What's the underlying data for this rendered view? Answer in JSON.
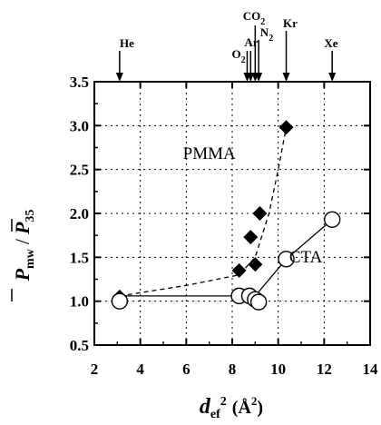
{
  "chart_data": {
    "type": "scatter",
    "title": "",
    "xlabel": {
      "main": "d",
      "sub": "ef",
      "sup": "2",
      "unit": "(Å",
      "unit_sup": "2",
      "unit_close": ")"
    },
    "ylabel": {
      "num": "P",
      "num_sub": "mw",
      "slash": "/",
      "den": "P",
      "den_sub": "35"
    },
    "xlim": [
      2,
      14
    ],
    "ylim": [
      0.5,
      3.5
    ],
    "xticks": [
      "2",
      "4",
      "6",
      "8",
      "10",
      "12",
      "14"
    ],
    "yticks": [
      "0.5",
      "1.0",
      "1.5",
      "2.0",
      "2.5",
      "3.0",
      "3.5"
    ],
    "grid": true,
    "gas_markers": [
      {
        "name": "He",
        "x": 3.1
      },
      {
        "name": "O2",
        "x": 8.65
      },
      {
        "name": "Ar",
        "x": 8.8
      },
      {
        "name": "CO2",
        "x": 9.0
      },
      {
        "name": "N2",
        "x": 9.15
      },
      {
        "name": "Kr",
        "x": 10.35
      },
      {
        "name": "Xe",
        "x": 12.35
      }
    ],
    "gas_labels": {
      "he": {
        "t": "He"
      },
      "o2": {
        "t": "O",
        "s": "2"
      },
      "ar": {
        "t": "Ar"
      },
      "co2": {
        "t": "CO",
        "s": "2"
      },
      "n2": {
        "t": "N",
        "s": "2"
      },
      "kr": {
        "t": "Kr"
      },
      "xe": {
        "t": "Xe"
      }
    },
    "series": [
      {
        "name": "PMMA",
        "marker": "filled-diamond",
        "line": "dashed",
        "points": [
          [
            3.1,
            1.05
          ],
          [
            8.3,
            1.35
          ],
          [
            8.8,
            1.73
          ],
          [
            9.0,
            1.42
          ],
          [
            9.2,
            2.0
          ],
          [
            10.35,
            2.98
          ]
        ],
        "curve": [
          [
            3.1,
            1.06
          ],
          [
            6.0,
            1.18
          ],
          [
            8.3,
            1.3
          ],
          [
            9.0,
            1.5
          ],
          [
            9.6,
            2.0
          ],
          [
            10.0,
            2.5
          ],
          [
            10.35,
            2.98
          ]
        ]
      },
      {
        "name": "CTA",
        "marker": "open-circle",
        "line": "solid",
        "points": [
          [
            3.1,
            1.0
          ],
          [
            8.3,
            1.06
          ],
          [
            8.75,
            1.06
          ],
          [
            9.0,
            1.02
          ],
          [
            9.15,
            0.99
          ],
          [
            10.35,
            1.48
          ],
          [
            12.35,
            1.93
          ]
        ],
        "curve": [
          [
            3.1,
            1.06
          ],
          [
            8.3,
            1.06
          ],
          [
            9.0,
            1.06
          ],
          [
            10.35,
            1.48
          ],
          [
            12.35,
            1.93
          ]
        ]
      }
    ],
    "annotations": [
      {
        "text": "PMMA",
        "x": 7.0,
        "y": 2.62
      },
      {
        "text": "CTA",
        "x": 11.2,
        "y": 1.44
      }
    ]
  }
}
